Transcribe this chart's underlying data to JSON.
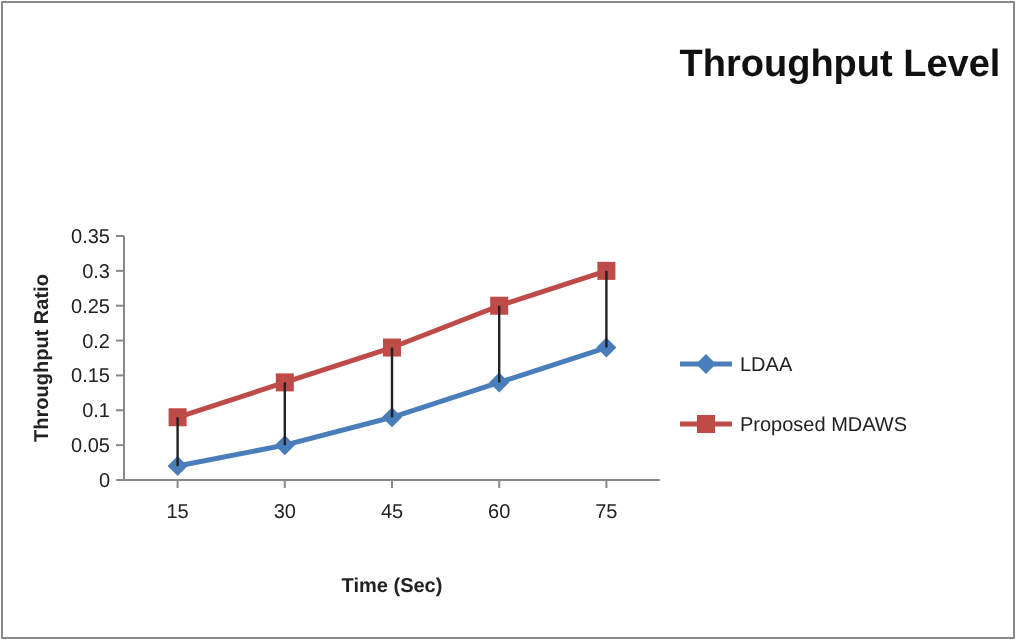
{
  "chart_data": {
    "type": "line",
    "title": "Throughput Level",
    "xlabel": "Time (Sec)",
    "ylabel": "Throughput Ratio",
    "categories": [
      "15",
      "30",
      "45",
      "60",
      "75"
    ],
    "series": [
      {
        "name": "LDAA",
        "color": "#4a7ebb",
        "values": [
          0.02,
          0.05,
          0.09,
          0.14,
          0.19
        ],
        "marker": "diamond"
      },
      {
        "name": "Proposed MDAWS",
        "color": "#be4b48",
        "values": [
          0.09,
          0.14,
          0.19,
          0.25,
          0.3
        ],
        "marker": "square"
      },
      {
        "type": "bar",
        "color": "#222222",
        "base": [
          0.02,
          0.05,
          0.09,
          0.14,
          0.19
        ],
        "values": [
          0.07,
          0.09,
          0.1,
          0.11,
          0.11
        ]
      }
    ],
    "ylim": [
      0,
      0.35
    ],
    "yticks": [
      {
        "value": 0,
        "label": "0"
      },
      0.05,
      0.1,
      0.15,
      0.2,
      0.25,
      0.3,
      0.35
    ],
    "grid": false,
    "legend": "right"
  }
}
